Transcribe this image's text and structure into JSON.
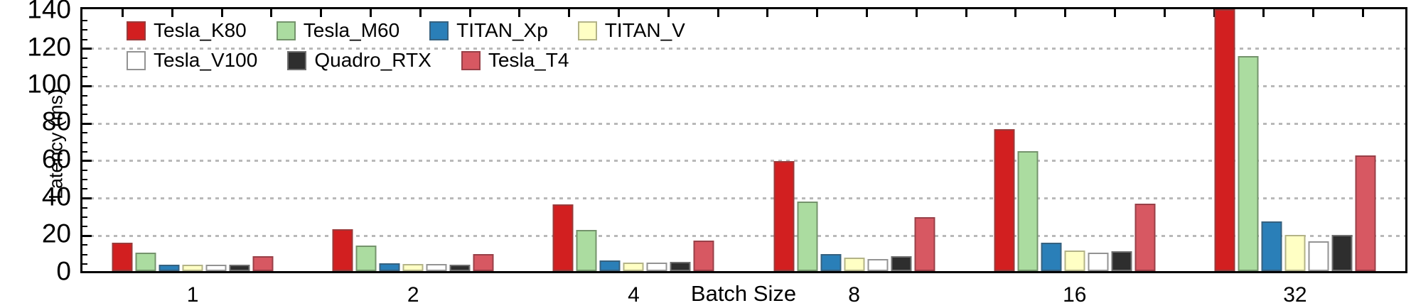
{
  "chart_data": {
    "type": "bar",
    "title": "",
    "xlabel": "Batch Size",
    "ylabel": "Latency (ms)",
    "categories": [
      "1",
      "2",
      "4",
      "8",
      "16",
      "32"
    ],
    "series": [
      {
        "name": "Tesla_K80",
        "color": "#d21f20",
        "border": "#9a3a3a",
        "values": [
          15,
          22.5,
          35.5,
          59,
          76,
          140
        ],
        "clipped": [
          false,
          false,
          false,
          false,
          false,
          true
        ]
      },
      {
        "name": "Tesla_M60",
        "color": "#abdca0",
        "border": "#74936c",
        "values": [
          10,
          13.5,
          22,
          37,
          64,
          115
        ]
      },
      {
        "name": "TITAN_Xp",
        "color": "#2a7fb8",
        "border": "#36617f",
        "values": [
          3.5,
          4.2,
          5.7,
          9.2,
          15.3,
          26.5
        ]
      },
      {
        "name": "TITAN_V",
        "color": "#ffffc4",
        "border": "#b3b387",
        "values": [
          3.3,
          3.7,
          4.4,
          7.4,
          11,
          19.5
        ]
      },
      {
        "name": "Tesla_V100",
        "color": "#ffffff",
        "border": "#939393",
        "values": [
          3.5,
          3.9,
          4.6,
          6.4,
          9.7,
          16
        ]
      },
      {
        "name": "Quadro_RTX",
        "color": "#2e2e2e",
        "border": "#6f6f6f",
        "values": [
          3.4,
          3.5,
          5,
          8,
          10.8,
          19.5
        ]
      },
      {
        "name": "Tesla_T4",
        "color": "#d75862",
        "border": "#984048",
        "values": [
          8,
          9.3,
          16.5,
          29,
          36,
          62
        ]
      }
    ],
    "ylim": [
      0,
      140
    ],
    "yticks": [
      0,
      20,
      40,
      60,
      80,
      100,
      120,
      140
    ],
    "y_minor_tick_step": 5,
    "grid": "horizontal dotted gray lines at major y ticks",
    "grid_color": "#b9b9b9",
    "legend_position": "inside top-left, no frame, two rows",
    "legend_rows": [
      [
        "Tesla_K80",
        "Tesla_M60",
        "TITAN_Xp",
        "TITAN_V"
      ],
      [
        "Tesla_V100",
        "Quadro_RTX",
        "Tesla_T4"
      ]
    ],
    "notes": "Tesla_K80 bar at batch size 32 is clipped at the top of the axis (>= 140 ms)"
  }
}
